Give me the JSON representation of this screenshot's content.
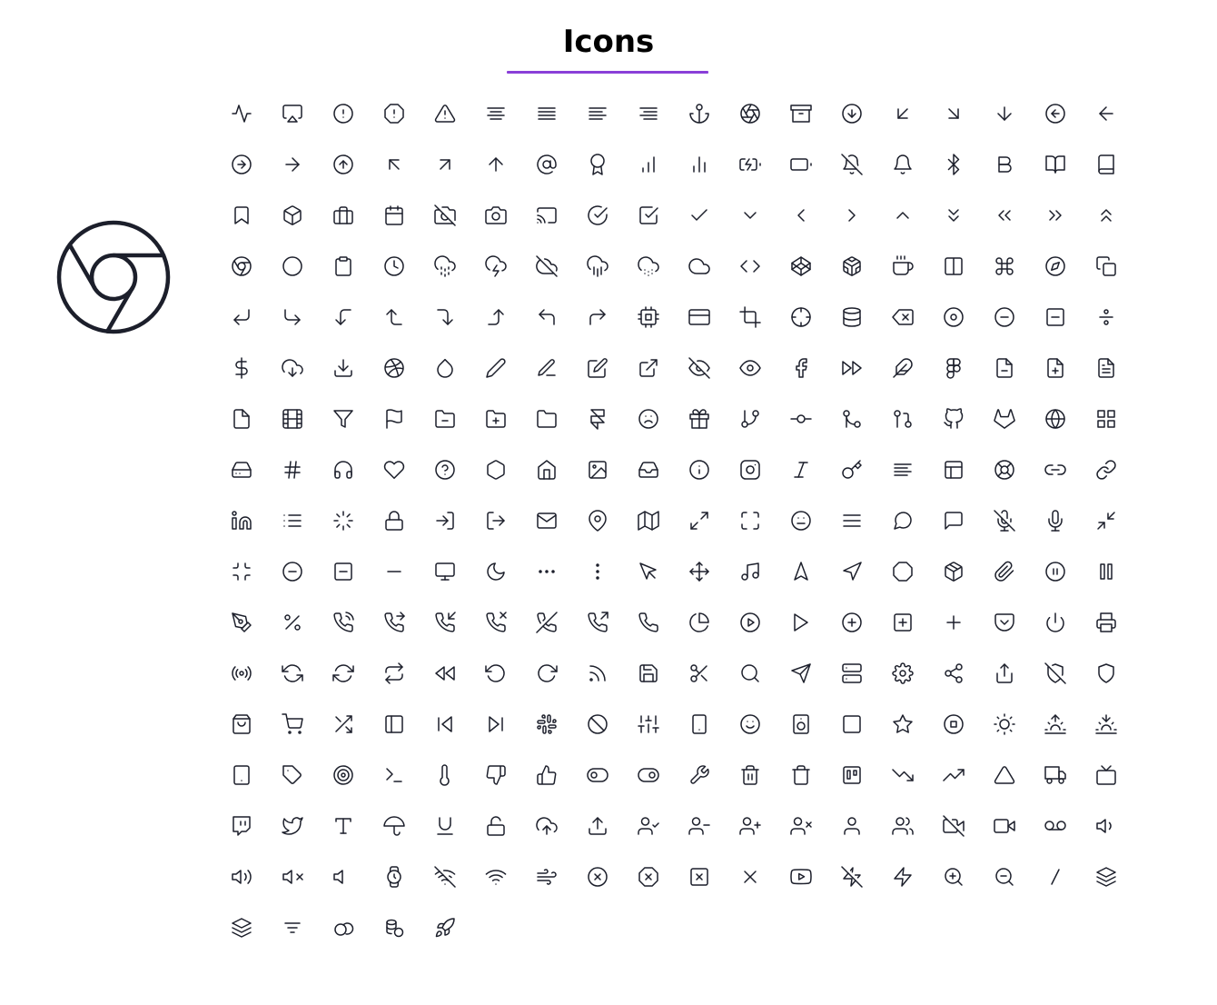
{
  "page": {
    "title": "Icons",
    "accent_color": "#8a3fd8",
    "icon_color": "#1c1f2b"
  },
  "preview": {
    "icon": "chrome"
  },
  "icons": [
    "activity",
    "airplay",
    "alert-circle",
    "alert-octagon",
    "alert-triangle",
    "align-center",
    "align-justify",
    "align-left",
    "align-right",
    "anchor",
    "aperture",
    "archive",
    "arrow-down-circle",
    "arrow-down-left",
    "arrow-down-right",
    "arrow-down",
    "arrow-left-circle",
    "arrow-left",
    "arrow-right-circle",
    "arrow-right",
    "arrow-up-circle",
    "arrow-up-left",
    "arrow-up-right",
    "arrow-up",
    "at-sign",
    "award",
    "bar-chart",
    "bar-chart-2",
    "battery-charging",
    "battery",
    "bell-off",
    "bell",
    "bluetooth",
    "bold",
    "book-open",
    "book",
    "bookmark",
    "box",
    "briefcase",
    "calendar",
    "camera-off",
    "camera",
    "cast",
    "check-circle",
    "check-square",
    "check",
    "chevron-down",
    "chevron-left",
    "chevron-right",
    "chevron-up",
    "chevrons-down",
    "chevrons-left",
    "chevrons-right",
    "chevrons-up",
    "chrome",
    "circle",
    "clipboard",
    "clock",
    "cloud-drizzle",
    "cloud-lightning",
    "cloud-off",
    "cloud-rain",
    "cloud-snow",
    "cloud",
    "code",
    "codepen",
    "codesandbox",
    "coffee",
    "columns",
    "command",
    "compass",
    "copy",
    "corner-down-left",
    "corner-down-right",
    "corner-left-down",
    "corner-left-up",
    "corner-right-down",
    "corner-right-up",
    "corner-up-left",
    "corner-up-right",
    "cpu",
    "credit-card",
    "crop",
    "crosshair",
    "database",
    "delete",
    "disc",
    "minus-circle",
    "minus-square",
    "divide",
    "dollar-sign",
    "download-cloud",
    "download",
    "dribbble",
    "droplet",
    "edit-2",
    "edit-3",
    "edit",
    "external-link",
    "eye-off",
    "eye",
    "facebook",
    "fast-forward",
    "feather",
    "figma",
    "file-minus",
    "file-plus",
    "file-text",
    "file",
    "film",
    "filter",
    "flag",
    "folder-minus",
    "folder-plus",
    "folder",
    "framer",
    "frown",
    "gift",
    "git-branch",
    "git-commit",
    "git-merge",
    "git-pull-request",
    "github",
    "gitlab",
    "globe",
    "grid",
    "hard-drive",
    "hash",
    "headphones",
    "heart",
    "help-circle",
    "hexagon",
    "home",
    "image",
    "inbox",
    "info",
    "instagram",
    "italic",
    "key",
    "align-left",
    "layout",
    "life-buoy",
    "link-2",
    "link",
    "linkedin",
    "list",
    "loader",
    "lock",
    "log-in",
    "log-out",
    "mail",
    "map-pin",
    "map",
    "maximize-2",
    "maximize",
    "meh",
    "menu",
    "message-circle",
    "message-square",
    "mic-off",
    "mic",
    "minimize-2",
    "minimize",
    "minus-circle",
    "minus-square",
    "minus",
    "monitor",
    "moon",
    "more-horizontal",
    "more-vertical",
    "mouse-pointer",
    "move",
    "music",
    "navigation-2",
    "navigation",
    "octagon",
    "package",
    "paperclip",
    "pause-circle",
    "pause",
    "pen-tool",
    "percent",
    "phone-call",
    "phone-forwarded",
    "phone-incoming",
    "phone-missed",
    "phone-off",
    "phone-outgoing",
    "phone",
    "pie-chart",
    "play-circle",
    "play",
    "plus-circle",
    "plus-square",
    "plus",
    "pocket",
    "power",
    "printer",
    "radio",
    "refresh-ccw",
    "refresh-cw",
    "repeat",
    "rewind",
    "rotate-ccw",
    "rotate-cw",
    "rss",
    "save",
    "scissors",
    "search",
    "send",
    "server",
    "settings",
    "share-2",
    "share",
    "shield-off",
    "shield",
    "shopping-bag",
    "shopping-cart",
    "shuffle",
    "sidebar",
    "skip-back",
    "skip-forward",
    "slack",
    "slash",
    "sliders",
    "smartphone",
    "smile",
    "speaker",
    "square",
    "star",
    "stop-circle",
    "sun",
    "sunrise",
    "sunset",
    "tablet",
    "tag",
    "target",
    "terminal",
    "thermometer",
    "thumbs-down",
    "thumbs-up",
    "toggle-left",
    "toggle-right",
    "tool",
    "trash-2",
    "trash",
    "trello",
    "trending-down",
    "trending-up",
    "triangle",
    "truck",
    "tv",
    "twitch",
    "twitter",
    "type",
    "umbrella",
    "underline",
    "unlock",
    "upload-cloud",
    "upload",
    "user-check",
    "user-minus",
    "user-plus",
    "user-x",
    "user",
    "users",
    "video-off",
    "video",
    "voicemail",
    "volume-1",
    "volume-2",
    "volume-x",
    "volume",
    "watch",
    "wifi-off",
    "wifi",
    "wind",
    "x-circle",
    "x-octagon",
    "x-square",
    "x",
    "youtube",
    "zap-off",
    "zap",
    "zoom-in",
    "zoom-out",
    "slash-line",
    "layers",
    "layers",
    "filter-lines",
    "circles",
    "coins",
    "rocket"
  ]
}
